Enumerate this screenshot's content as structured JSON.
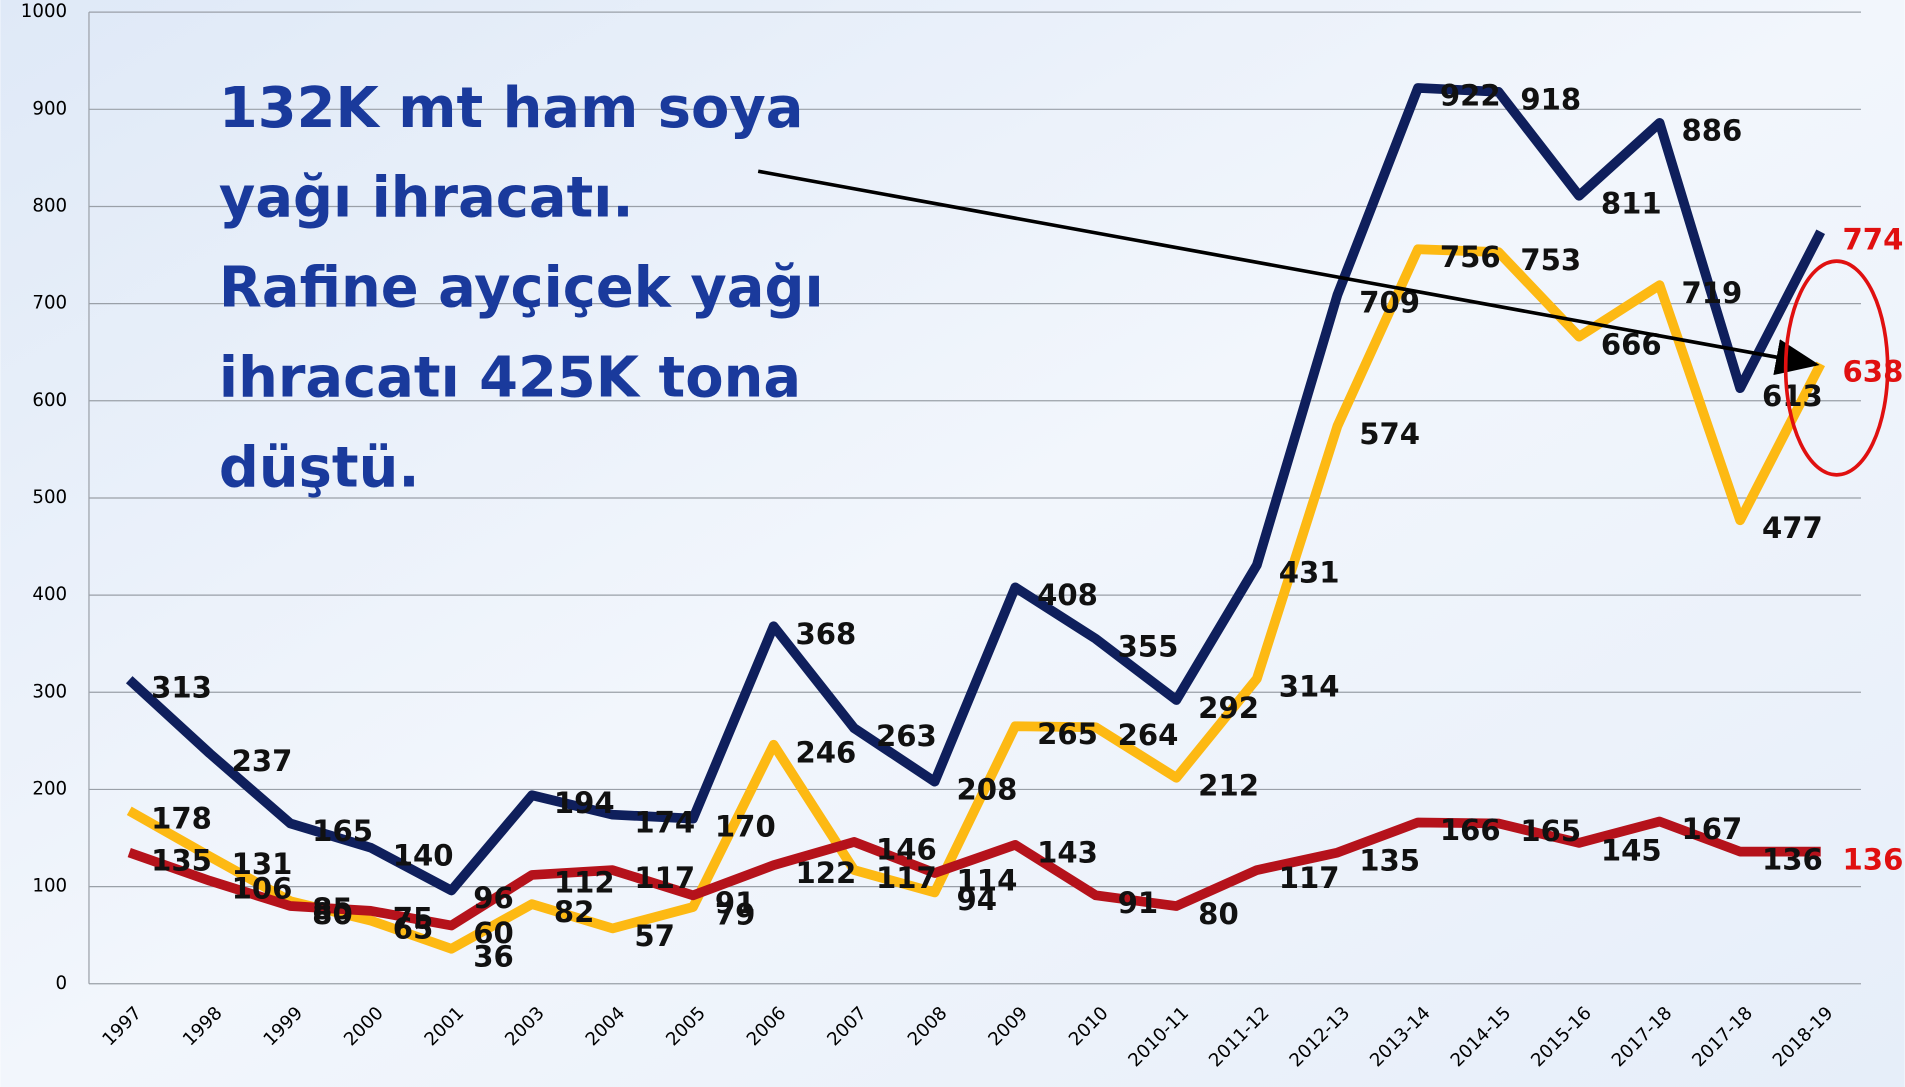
{
  "chart_data": {
    "type": "line",
    "annotation": [
      "132K mt ham soya",
      "yağı ihracatı.",
      "Rafine ayçiçek yağı",
      "ihracatı 425K tona",
      "düştü."
    ],
    "categories": [
      "1997",
      "1998",
      "1999",
      "2000",
      "2001",
      "2003",
      "2004",
      "2005",
      "2006",
      "2007",
      "2008",
      "2009",
      "2010",
      "2010-11",
      "2011-12",
      "2012-13",
      "2013-14",
      "2014-15",
      "2015-16",
      "2017-18",
      "2017-18",
      "2018-19"
    ],
    "series": [
      {
        "color": "#0f1f5c",
        "values": [
          313,
          237,
          165,
          140,
          96,
          194,
          174,
          170,
          368,
          263,
          208,
          408,
          355,
          292,
          431,
          709,
          922,
          918,
          811,
          886,
          613,
          774
        ]
      },
      {
        "color": "#fdb913",
        "values": [
          178,
          131,
          85,
          65,
          36,
          82,
          57,
          79,
          246,
          117,
          94,
          265,
          264,
          212,
          314,
          574,
          756,
          753,
          666,
          719,
          477,
          638
        ]
      },
      {
        "color": "#b5121b",
        "values": [
          135,
          106,
          80,
          75,
          60,
          112,
          117,
          91,
          122,
          146,
          114,
          143,
          91,
          80,
          117,
          135,
          166,
          165,
          145,
          167,
          136,
          136
        ]
      }
    ],
    "last_label_color": "#e01010",
    "ylim": [
      0,
      1000
    ],
    "yticks": [
      0,
      100,
      200,
      300,
      400,
      500,
      600,
      700,
      800,
      900,
      1000
    ],
    "grid": true
  }
}
